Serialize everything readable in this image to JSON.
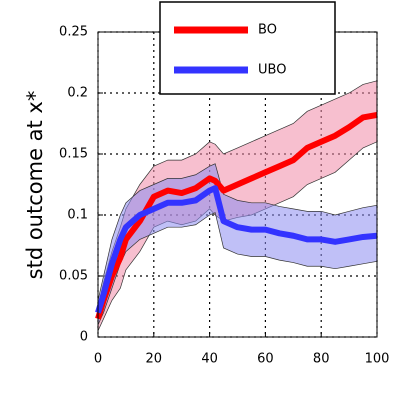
{
  "chart_data": {
    "type": "line",
    "y_label": "std outcome at x*",
    "x": [
      0,
      2,
      5,
      8,
      10,
      15,
      20,
      25,
      30,
      35,
      40,
      42,
      45,
      50,
      55,
      60,
      65,
      70,
      75,
      80,
      85,
      90,
      95,
      100
    ],
    "series": [
      {
        "name": "BO",
        "color": "#ff0000",
        "band_color": "#f08aa8",
        "values": [
          0.015,
          0.03,
          0.05,
          0.065,
          0.08,
          0.095,
          0.115,
          0.12,
          0.118,
          0.122,
          0.13,
          0.128,
          0.12,
          0.125,
          0.13,
          0.135,
          0.14,
          0.145,
          0.155,
          0.16,
          0.165,
          0.172,
          0.18,
          0.182
        ],
        "upper": [
          0.025,
          0.045,
          0.07,
          0.09,
          0.105,
          0.125,
          0.14,
          0.145,
          0.145,
          0.15,
          0.16,
          0.158,
          0.15,
          0.155,
          0.16,
          0.165,
          0.17,
          0.175,
          0.185,
          0.19,
          0.195,
          0.2,
          0.207,
          0.21
        ],
        "lower": [
          0.005,
          0.015,
          0.03,
          0.04,
          0.055,
          0.07,
          0.09,
          0.095,
          0.092,
          0.095,
          0.105,
          0.1,
          0.095,
          0.098,
          0.1,
          0.105,
          0.11,
          0.115,
          0.125,
          0.13,
          0.135,
          0.145,
          0.155,
          0.16
        ]
      },
      {
        "name": "UBO",
        "color": "#3333ff",
        "band_color": "#8c8cf0",
        "values": [
          0.02,
          0.035,
          0.06,
          0.08,
          0.09,
          0.1,
          0.105,
          0.11,
          0.11,
          0.112,
          0.12,
          0.122,
          0.095,
          0.09,
          0.088,
          0.088,
          0.085,
          0.083,
          0.08,
          0.08,
          0.078,
          0.08,
          0.082,
          0.083
        ],
        "upper": [
          0.03,
          0.05,
          0.08,
          0.1,
          0.11,
          0.12,
          0.125,
          0.13,
          0.13,
          0.133,
          0.14,
          0.142,
          0.117,
          0.112,
          0.11,
          0.11,
          0.107,
          0.105,
          0.103,
          0.103,
          0.1,
          0.103,
          0.106,
          0.108
        ],
        "lower": [
          0.01,
          0.02,
          0.04,
          0.06,
          0.07,
          0.08,
          0.085,
          0.09,
          0.09,
          0.092,
          0.1,
          0.102,
          0.073,
          0.068,
          0.066,
          0.066,
          0.063,
          0.061,
          0.058,
          0.058,
          0.056,
          0.058,
          0.06,
          0.062
        ]
      }
    ],
    "xlim": [
      0,
      100
    ],
    "xticks": [
      0,
      20,
      40,
      60,
      80,
      100
    ],
    "ylim": [
      0,
      0.25
    ],
    "yticks": [
      0,
      0.05,
      0.1,
      0.15,
      0.2,
      0.25
    ],
    "grid": true,
    "legend": "upper center"
  }
}
